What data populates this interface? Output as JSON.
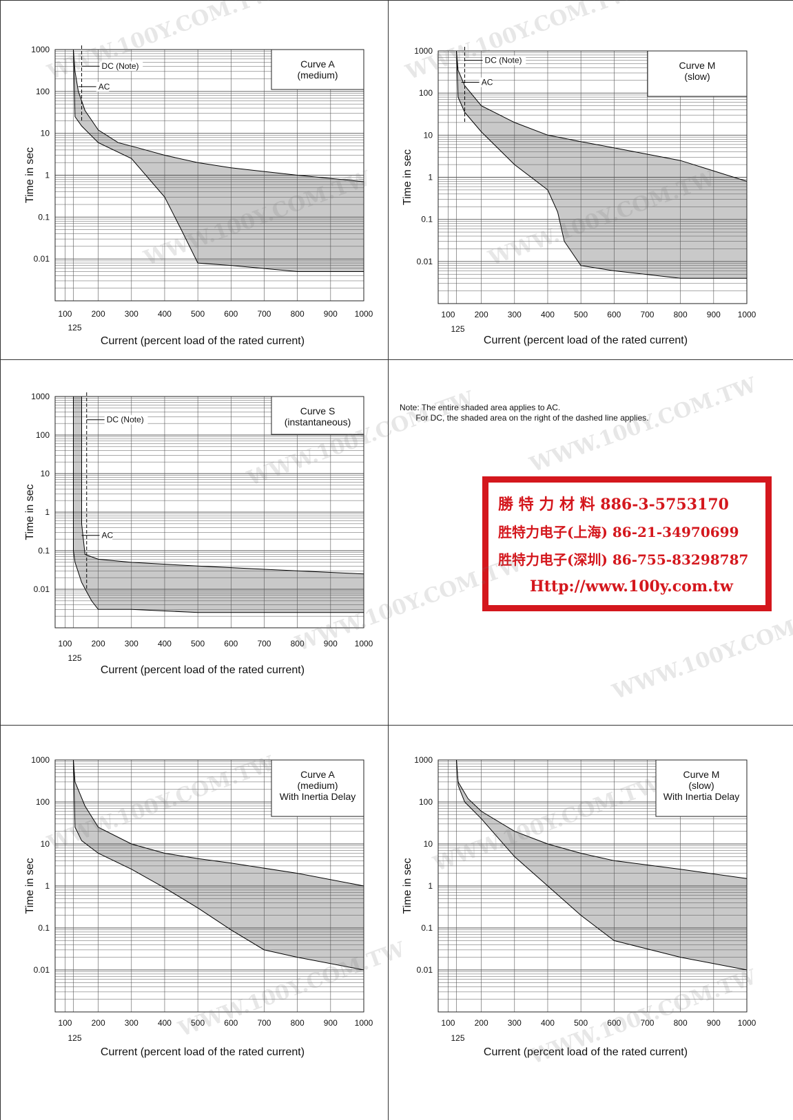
{
  "chart_data": [
    {
      "type": "area",
      "title": "Curve A",
      "subtitle": [
        "(medium)"
      ],
      "xlabel": "Current (percent load of the rated current)",
      "ylabel": "Time in sec",
      "x_ticks": [
        "100",
        "200",
        "300",
        "400",
        "500",
        "600",
        "700",
        "800",
        "900",
        "1000"
      ],
      "x_extra_tick": "125",
      "y_ticks": [
        "1000",
        "100",
        "10",
        "1",
        "0.1",
        "0.01"
      ],
      "ylim": [
        0.001,
        1000
      ],
      "xlim": [
        70,
        1000
      ],
      "y_scale": "log",
      "series": [
        {
          "role": "upper",
          "x": [
            125,
            130,
            140,
            160,
            200,
            260,
            320,
            400,
            500,
            600,
            800,
            1000
          ],
          "y": [
            1000,
            300,
            100,
            35,
            12,
            6,
            4.5,
            3,
            2,
            1.5,
            1.0,
            0.7
          ]
        },
        {
          "role": "lower",
          "x": [
            125,
            130,
            150,
            200,
            300,
            400,
            450,
            500,
            600,
            800,
            1000
          ],
          "y": [
            1000,
            25,
            15,
            6,
            2.5,
            0.3,
            0.05,
            0.008,
            0.007,
            0.005,
            0.005
          ]
        }
      ],
      "annotations": [
        {
          "label": "DC (Note)",
          "x": 150,
          "y": 400,
          "style": "dashed"
        },
        {
          "label": "AC",
          "x": 140,
          "y": 130,
          "style": "solid"
        }
      ]
    },
    {
      "type": "area",
      "title": "Curve M",
      "subtitle": [
        "(slow)"
      ],
      "xlabel": "Current (percent load of the rated current)",
      "ylabel": "Time in sec",
      "x_ticks": [
        "100",
        "200",
        "300",
        "400",
        "500",
        "600",
        "700",
        "800",
        "900",
        "1000"
      ],
      "x_extra_tick": "125",
      "y_ticks": [
        "1000",
        "100",
        "10",
        "1",
        "0.1",
        "0.01"
      ],
      "ylim": [
        0.001,
        1000
      ],
      "xlim": [
        70,
        1000
      ],
      "y_scale": "log",
      "series": [
        {
          "role": "upper",
          "x": [
            125,
            130,
            150,
            200,
            300,
            400,
            500,
            600,
            800,
            1000
          ],
          "y": [
            1000,
            350,
            150,
            50,
            20,
            10,
            7,
            5,
            2.5,
            0.8
          ]
        },
        {
          "role": "lower",
          "x": [
            125,
            130,
            150,
            200,
            300,
            400,
            430,
            450,
            500,
            600,
            800,
            1000
          ],
          "y": [
            1000,
            80,
            35,
            12,
            2,
            0.5,
            0.15,
            0.03,
            0.008,
            0.006,
            0.004,
            0.004
          ]
        }
      ],
      "annotations": [
        {
          "label": "DC (Note)",
          "x": 150,
          "y": 600,
          "style": "dashed"
        },
        {
          "label": "AC",
          "x": 140,
          "y": 180,
          "style": "solid"
        }
      ]
    },
    {
      "type": "area",
      "title": "Curve S",
      "subtitle": [
        "(instantaneous)"
      ],
      "xlabel": "Current (percent load of the rated current)",
      "ylabel": "Time in sec",
      "x_ticks": [
        "100",
        "200",
        "300",
        "400",
        "500",
        "600",
        "700",
        "800",
        "900",
        "1000"
      ],
      "x_extra_tick": "125",
      "y_ticks": [
        "1000",
        "100",
        "10",
        "1",
        "0.1",
        "0.01"
      ],
      "ylim": [
        0.001,
        1000
      ],
      "xlim": [
        70,
        1000
      ],
      "y_scale": "log",
      "series": [
        {
          "role": "upper",
          "x": [
            150,
            150,
            160,
            200,
            300,
            500,
            800,
            1000
          ],
          "y": [
            1000,
            0.5,
            0.08,
            0.06,
            0.05,
            0.04,
            0.03,
            0.025
          ]
        },
        {
          "role": "lower",
          "x": [
            125,
            125,
            130,
            150,
            180,
            200,
            300,
            500,
            800,
            1000
          ],
          "y": [
            1000,
            0.1,
            0.05,
            0.015,
            0.005,
            0.003,
            0.003,
            0.0025,
            0.0025,
            0.0025
          ]
        }
      ],
      "annotations": [
        {
          "label": "DC (Note)",
          "x": 165,
          "y": 250,
          "style": "dashed"
        },
        {
          "label": "AC",
          "x": 150,
          "y": 0.25,
          "style": "solid"
        }
      ]
    },
    {
      "type": "area",
      "title": "Curve A",
      "subtitle": [
        "(medium)",
        "With Inertia Delay"
      ],
      "xlabel": "Current (percent load of the rated current)",
      "ylabel": "Time in sec",
      "x_ticks": [
        "100",
        "200",
        "300",
        "400",
        "500",
        "600",
        "700",
        "800",
        "900",
        "1000"
      ],
      "x_extra_tick": "125",
      "y_ticks": [
        "1000",
        "100",
        "10",
        "1",
        "0.1",
        "0.01"
      ],
      "ylim": [
        0.001,
        1000
      ],
      "xlim": [
        70,
        1000
      ],
      "y_scale": "log",
      "series": [
        {
          "role": "upper",
          "x": [
            125,
            130,
            160,
            200,
            300,
            400,
            500,
            600,
            800,
            1000
          ],
          "y": [
            1000,
            300,
            80,
            25,
            10,
            6,
            4.5,
            3.5,
            2,
            1
          ]
        },
        {
          "role": "lower",
          "x": [
            125,
            130,
            150,
            200,
            300,
            400,
            500,
            600,
            700,
            800,
            1000
          ],
          "y": [
            1000,
            25,
            12,
            6,
            2.5,
            0.9,
            0.3,
            0.09,
            0.03,
            0.02,
            0.01
          ]
        }
      ],
      "annotations": []
    },
    {
      "type": "area",
      "title": "Curve M",
      "subtitle": [
        "(slow)",
        "With Inertia Delay"
      ],
      "xlabel": "Current (percent load of the rated current)",
      "ylabel": "Time in sec",
      "x_ticks": [
        "100",
        "200",
        "300",
        "400",
        "500",
        "600",
        "700",
        "800",
        "900",
        "1000"
      ],
      "x_extra_tick": "125",
      "y_ticks": [
        "1000",
        "100",
        "10",
        "1",
        "0.1",
        "0.01"
      ],
      "ylim": [
        0.001,
        1000
      ],
      "xlim": [
        70,
        1000
      ],
      "y_scale": "log",
      "series": [
        {
          "role": "upper",
          "x": [
            125,
            130,
            160,
            200,
            300,
            400,
            500,
            600,
            800,
            1000
          ],
          "y": [
            1000,
            300,
            120,
            60,
            20,
            10,
            6,
            4,
            2.5,
            1.5
          ]
        },
        {
          "role": "lower",
          "x": [
            125,
            130,
            150,
            200,
            300,
            400,
            500,
            600,
            800,
            1000
          ],
          "y": [
            1000,
            250,
            100,
            40,
            5,
            1,
            0.2,
            0.05,
            0.02,
            0.01
          ]
        }
      ],
      "annotations": []
    }
  ],
  "note": {
    "line1": "Note: The entire shaded area applies to AC.",
    "line2": "       For DC, the shaded area on the right of the dashed line applies."
  },
  "stamp": {
    "line1": "勝 特 力 材 料 886-3-5753170",
    "line2": "胜特力电子(上海) 86-21-34970699",
    "line3": "胜特力电子(深圳) 86-755-83298787",
    "line4": "Http://www.100y.com.tw",
    "border_color": "#d4171d"
  },
  "watermark_text": "WWW.100Y.COM.TW",
  "colors": {
    "shade": "#c9c9c9",
    "grid": "#555555",
    "band": "#000000"
  }
}
